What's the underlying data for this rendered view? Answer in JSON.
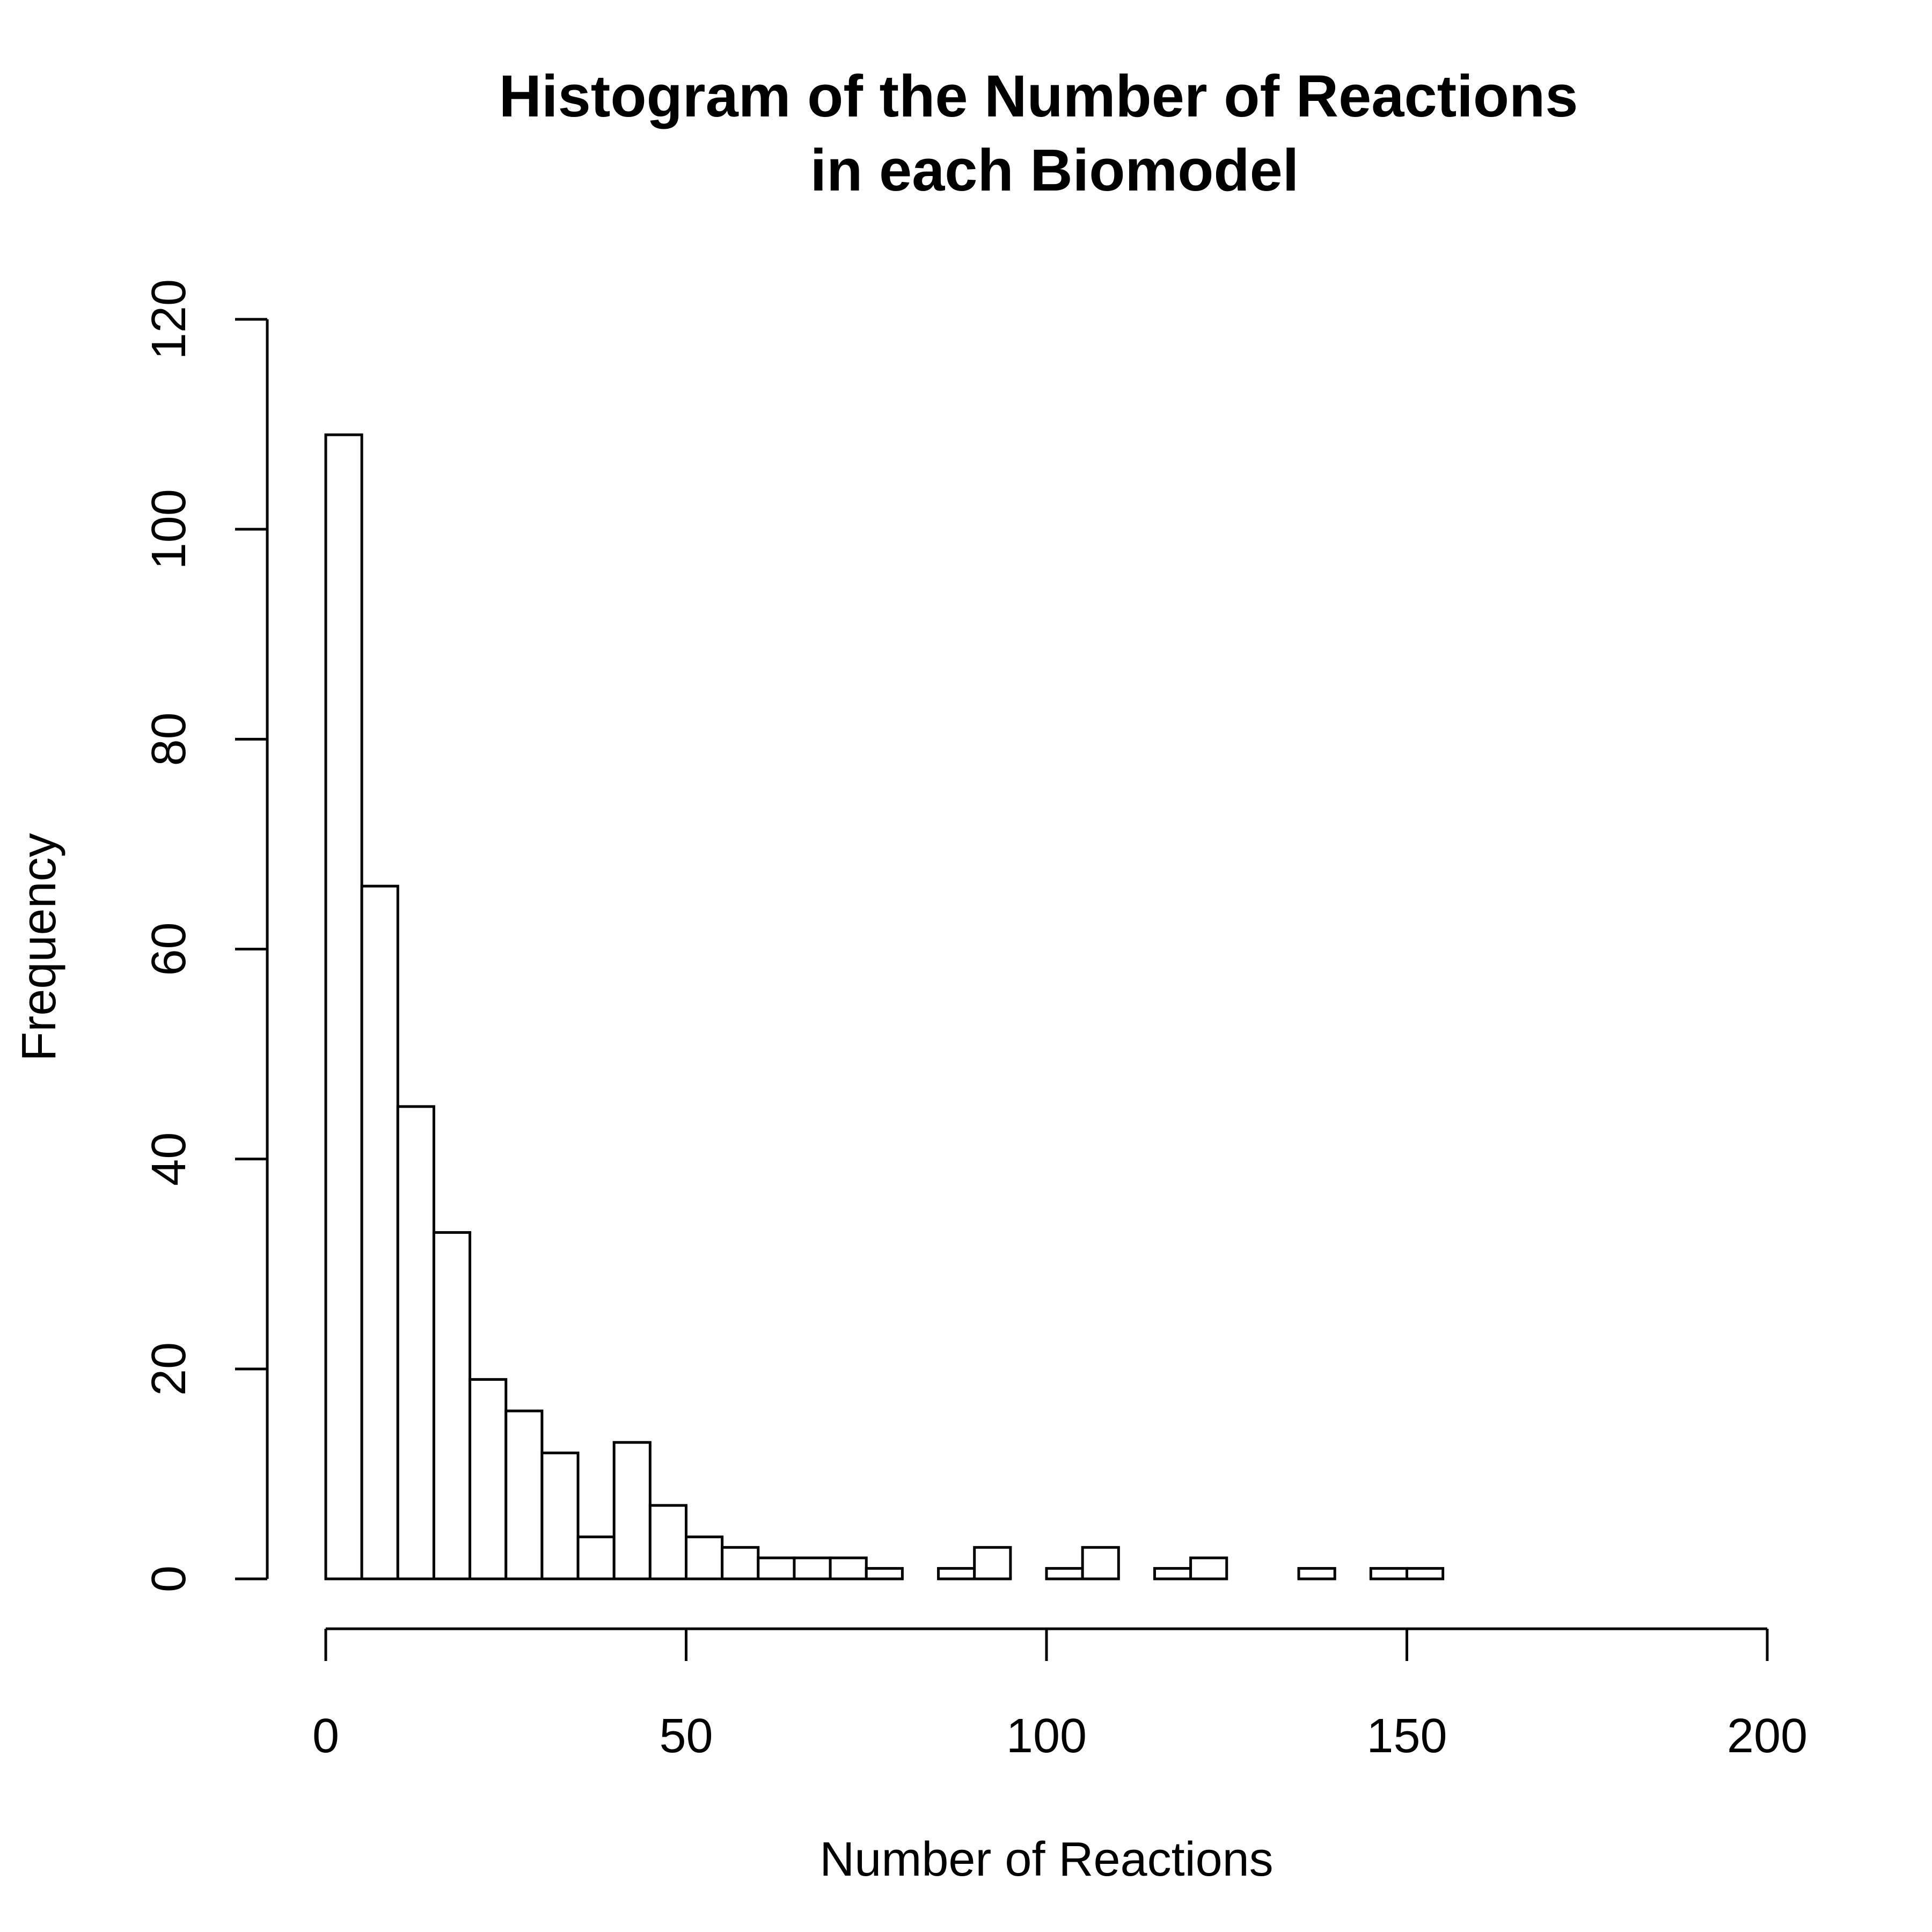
{
  "chart_data": {
    "type": "bar",
    "title_lines": [
      "Histogram of the Number of Reactions",
      "in each Biomodel"
    ],
    "xlabel": "Number of Reactions",
    "ylabel": "Frequency",
    "xlim": [
      0,
      200
    ],
    "ylim": [
      0,
      120
    ],
    "x_ticks": [
      0,
      50,
      100,
      150,
      200
    ],
    "y_ticks": [
      0,
      20,
      40,
      60,
      80,
      100,
      120
    ],
    "bin_width": 5,
    "bins": [
      {
        "start": 0,
        "end": 5,
        "count": 109
      },
      {
        "start": 5,
        "end": 10,
        "count": 66
      },
      {
        "start": 10,
        "end": 15,
        "count": 45
      },
      {
        "start": 15,
        "end": 20,
        "count": 33
      },
      {
        "start": 20,
        "end": 25,
        "count": 19
      },
      {
        "start": 25,
        "end": 30,
        "count": 16
      },
      {
        "start": 30,
        "end": 35,
        "count": 12
      },
      {
        "start": 35,
        "end": 40,
        "count": 4
      },
      {
        "start": 40,
        "end": 45,
        "count": 13
      },
      {
        "start": 45,
        "end": 50,
        "count": 7
      },
      {
        "start": 50,
        "end": 55,
        "count": 4
      },
      {
        "start": 55,
        "end": 60,
        "count": 3
      },
      {
        "start": 60,
        "end": 65,
        "count": 2
      },
      {
        "start": 65,
        "end": 70,
        "count": 2
      },
      {
        "start": 70,
        "end": 75,
        "count": 2
      },
      {
        "start": 75,
        "end": 80,
        "count": 1
      },
      {
        "start": 80,
        "end": 85,
        "count": 0
      },
      {
        "start": 85,
        "end": 90,
        "count": 1
      },
      {
        "start": 90,
        "end": 95,
        "count": 3
      },
      {
        "start": 95,
        "end": 100,
        "count": 0
      },
      {
        "start": 100,
        "end": 105,
        "count": 1
      },
      {
        "start": 105,
        "end": 110,
        "count": 3
      },
      {
        "start": 110,
        "end": 115,
        "count": 0
      },
      {
        "start": 115,
        "end": 120,
        "count": 1
      },
      {
        "start": 120,
        "end": 125,
        "count": 2
      },
      {
        "start": 125,
        "end": 130,
        "count": 0
      },
      {
        "start": 130,
        "end": 135,
        "count": 0
      },
      {
        "start": 135,
        "end": 140,
        "count": 1
      },
      {
        "start": 140,
        "end": 145,
        "count": 0
      },
      {
        "start": 145,
        "end": 150,
        "count": 1
      },
      {
        "start": 150,
        "end": 155,
        "count": 1
      }
    ],
    "bar_fill": "#ffffff",
    "bar_stroke": "#000000",
    "grid": false,
    "legend": "none"
  }
}
